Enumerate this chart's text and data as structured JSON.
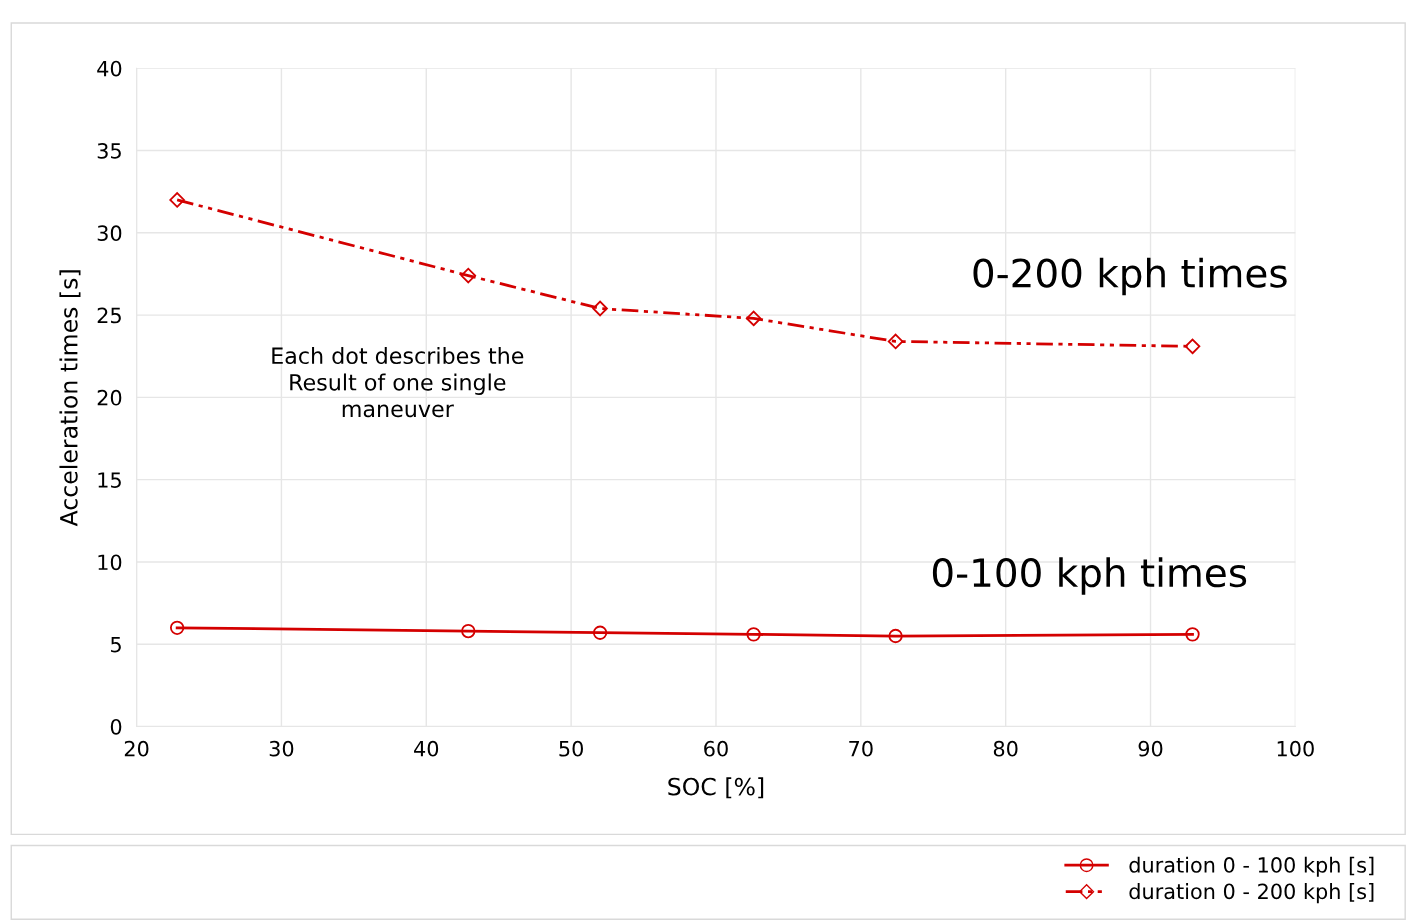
{
  "chart_data": {
    "type": "line",
    "xlabel": "SOC [%]",
    "ylabel": "Acceleration times [s]",
    "xlim": [
      20,
      100
    ],
    "xticks": [
      20,
      30,
      40,
      50,
      60,
      70,
      80,
      90,
      100
    ],
    "ylim": [
      0,
      40
    ],
    "yticks": [
      0,
      5,
      10,
      15,
      20,
      25,
      30,
      35,
      40
    ],
    "grid": true,
    "legend": "bottom",
    "series": [
      {
        "name": "duration 0 - 100 kph [s]",
        "color": "#d40000",
        "marker": "circle",
        "line_style": "solid",
        "x": [
          22.8,
          42.9,
          52.0,
          62.6,
          72.4,
          92.9
        ],
        "values": [
          6.0,
          5.8,
          5.7,
          5.6,
          5.5,
          5.6
        ]
      },
      {
        "name": "duration 0 - 200 kph [s]",
        "color": "#d40000",
        "marker": "diamond",
        "line_style": "dashed",
        "x": [
          22.8,
          42.9,
          52.0,
          62.6,
          72.4,
          92.9
        ],
        "values": [
          32.0,
          27.4,
          25.4,
          24.8,
          23.4,
          23.1
        ]
      }
    ],
    "annotations": [
      "0-200 kph times",
      "0-100 kph times",
      "Each dot describes the\nResult of one single\nmaneuver"
    ]
  }
}
